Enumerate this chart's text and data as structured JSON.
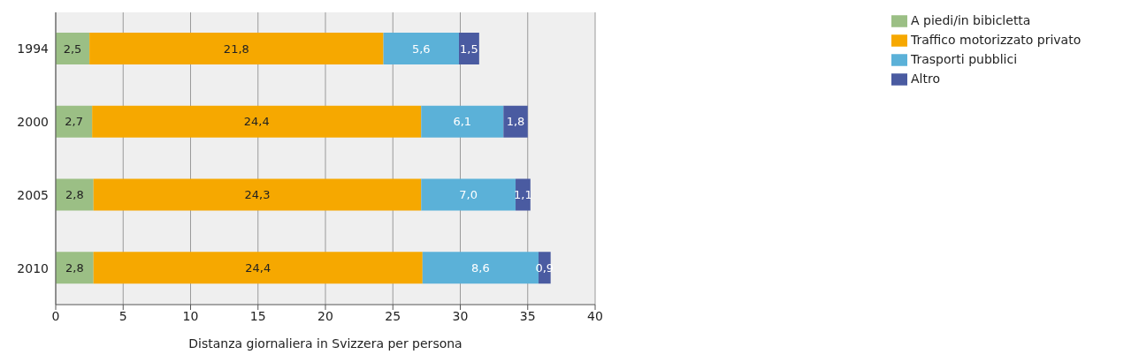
{
  "chart_data": {
    "type": "bar",
    "orientation": "horizontal",
    "stacked": true,
    "xlabel": "Distanza giornaliera in Svizzera per persona",
    "categories": [
      "1994",
      "2000",
      "2005",
      "2010"
    ],
    "series": [
      {
        "name": "A piedi/in bibicletta",
        "color": "#9bbf85",
        "values": [
          2.5,
          2.7,
          2.8,
          2.8
        ],
        "value_labels": [
          "2,5",
          "2,7",
          "2,8",
          "2,8"
        ]
      },
      {
        "name": "Traffico motorizzato privato",
        "color": "#f6a800",
        "values": [
          21.8,
          24.4,
          24.3,
          24.4
        ],
        "value_labels": [
          "21,8",
          "24,4",
          "24,3",
          "24,4"
        ]
      },
      {
        "name": "Trasporti pubblici",
        "color": "#5bb1d8",
        "values": [
          5.6,
          6.1,
          7.0,
          8.6
        ],
        "value_labels": [
          "5,6",
          "6,1",
          "7,0",
          "8,6"
        ]
      },
      {
        "name": "Altro",
        "color": "#4a5ba1",
        "values": [
          1.5,
          1.8,
          1.1,
          0.9
        ],
        "value_labels": [
          "1,5",
          "1,8",
          "1,1",
          "0,9"
        ]
      }
    ],
    "xlim": [
      0,
      40
    ],
    "xticks": [
      0,
      5,
      10,
      15,
      20,
      25,
      30,
      35,
      40
    ],
    "grid": "x",
    "legend": "top right"
  }
}
